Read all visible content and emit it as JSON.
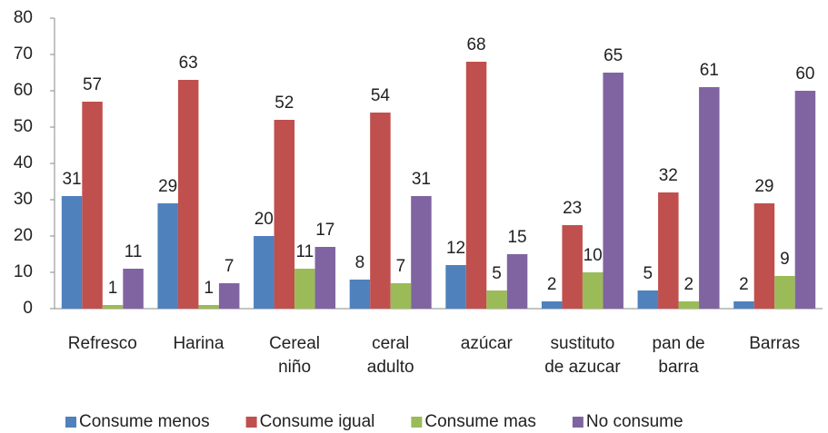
{
  "chart_data": {
    "type": "bar",
    "categories": [
      "Refresco",
      "Harina",
      "Cereal\nniño",
      "ceral\nadulto",
      "azúcar",
      "sustituto\nde azucar",
      "pan de\nbarra",
      "Barras"
    ],
    "series": [
      {
        "name": "Consume menos",
        "color": "#4f81bd",
        "values": [
          31,
          29,
          20,
          8,
          12,
          2,
          5,
          2
        ]
      },
      {
        "name": "Consume igual",
        "color": "#c0504d",
        "values": [
          57,
          63,
          52,
          54,
          68,
          23,
          32,
          29
        ]
      },
      {
        "name": "Consume mas",
        "color": "#9bbb59",
        "values": [
          1,
          1,
          11,
          7,
          5,
          10,
          2,
          9
        ]
      },
      {
        "name": "No consume",
        "color": "#8064a2",
        "values": [
          11,
          7,
          17,
          31,
          15,
          65,
          61,
          60
        ]
      }
    ],
    "ylim": [
      0,
      80
    ],
    "yticks": [
      0,
      10,
      20,
      30,
      40,
      50,
      60,
      70,
      80
    ],
    "grid": false,
    "legend": "bottom"
  }
}
